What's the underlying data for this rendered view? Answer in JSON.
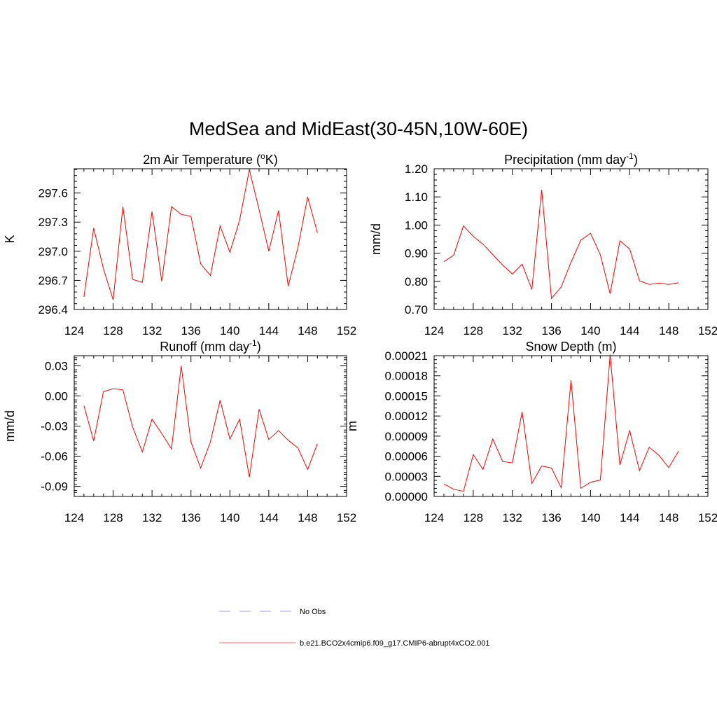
{
  "figure": {
    "title": "MedSea and MidEast(30-45N,10W-60E)"
  },
  "legend": [
    {
      "label": "No Obs",
      "color": "#9c9cff",
      "dash": "dashed"
    },
    {
      "label": "b.e21.BCO2x4cmip6.f09_g17.CMIP6-abrupt4xCO2.001",
      "color": "#ff7070",
      "dash": "solid"
    }
  ],
  "colors": {
    "series": "#ff0000",
    "axis": "#000000"
  },
  "chart_data": [
    {
      "type": "line",
      "title": "2m Air Temperature (oK)",
      "title_parts": {
        "before": "2m Air Temperature (",
        "sup": "o",
        "after": "K)"
      },
      "ylabel": "K",
      "xlim": [
        124,
        152
      ],
      "ylim": [
        296.4,
        297.85
      ],
      "xticks": [
        124,
        128,
        132,
        136,
        140,
        144,
        148,
        152
      ],
      "yticks": [
        296.4,
        296.7,
        297.0,
        297.3,
        297.6
      ],
      "ytick_labels": [
        "296.4",
        "296.7",
        "297.0",
        "297.3",
        "297.6"
      ],
      "x": [
        125,
        126,
        127,
        128,
        129,
        130,
        131,
        132,
        133,
        134,
        135,
        136,
        137,
        138,
        139,
        140,
        141,
        142,
        143,
        144,
        145,
        146,
        147,
        148,
        149
      ],
      "series": [
        {
          "values": [
            296.53,
            297.24,
            296.82,
            296.5,
            297.46,
            296.71,
            296.68,
            297.41,
            296.69,
            297.46,
            297.38,
            297.36,
            296.87,
            296.75,
            297.26,
            296.99,
            297.32,
            297.84,
            297.43,
            297.0,
            297.42,
            296.64,
            297.04,
            297.56,
            297.19
          ]
        }
      ]
    },
    {
      "type": "line",
      "title": "Precipitation (mm day-1)",
      "title_parts": {
        "before": "Precipitation (mm day",
        "sup": "-1",
        "after": ")"
      },
      "ylabel": "mm/d",
      "xlim": [
        124,
        152
      ],
      "ylim": [
        0.7,
        1.2
      ],
      "xticks": [
        124,
        128,
        132,
        136,
        140,
        144,
        148,
        152
      ],
      "yticks": [
        0.7,
        0.8,
        0.9,
        1.0,
        1.1,
        1.2
      ],
      "ytick_labels": [
        "0.70",
        "0.80",
        "0.90",
        "1.00",
        "1.10",
        "1.20"
      ],
      "x": [
        125,
        126,
        127,
        128,
        129,
        130,
        131,
        132,
        133,
        134,
        135,
        136,
        137,
        138,
        139,
        140,
        141,
        142,
        143,
        144,
        145,
        146,
        147,
        148,
        149
      ],
      "series": [
        {
          "values": [
            0.87,
            0.893,
            0.997,
            0.96,
            0.932,
            0.895,
            0.858,
            0.826,
            0.861,
            0.771,
            1.125,
            0.739,
            0.78,
            0.868,
            0.946,
            0.971,
            0.894,
            0.756,
            0.944,
            0.915,
            0.802,
            0.789,
            0.794,
            0.789,
            0.795
          ]
        }
      ]
    },
    {
      "type": "line",
      "title": "Runoff (mm day-1)",
      "title_parts": {
        "before": "Runoff (mm day",
        "sup": "-1",
        "after": ")"
      },
      "ylabel": "mm/d",
      "xlim": [
        124,
        152
      ],
      "ylim": [
        -0.1,
        0.04
      ],
      "xticks": [
        124,
        128,
        132,
        136,
        140,
        144,
        148,
        152
      ],
      "yticks": [
        -0.09,
        -0.06,
        -0.03,
        0.0,
        0.03
      ],
      "ytick_labels": [
        "-0.09",
        "-0.06",
        "-0.03",
        "0.00",
        "0.03"
      ],
      "x": [
        125,
        126,
        127,
        128,
        129,
        130,
        131,
        132,
        133,
        134,
        135,
        136,
        137,
        138,
        139,
        140,
        141,
        142,
        143,
        144,
        145,
        146,
        147,
        148,
        149
      ],
      "series": [
        {
          "values": [
            -0.0098,
            -0.0448,
            0.0042,
            0.0072,
            0.006,
            -0.031,
            -0.0558,
            -0.0232,
            -0.0374,
            -0.0528,
            0.0298,
            -0.0458,
            -0.0718,
            -0.0456,
            -0.0042,
            -0.0428,
            -0.0232,
            -0.0809,
            -0.0132,
            -0.0435,
            -0.0344,
            -0.0441,
            -0.0518,
            -0.0731,
            -0.0476
          ]
        }
      ]
    },
    {
      "type": "line",
      "title": "Snow Depth (m)",
      "title_parts": {
        "before": "Snow Depth (m)",
        "sup": "",
        "after": ""
      },
      "ylabel": "m",
      "xlim": [
        124,
        152
      ],
      "ylim": [
        0,
        0.00021
      ],
      "xticks": [
        124,
        128,
        132,
        136,
        140,
        144,
        148,
        152
      ],
      "yticks": [
        0,
        3e-05,
        6e-05,
        9e-05,
        0.00012,
        0.00015,
        0.00018,
        0.00021
      ],
      "ytick_labels": [
        "0.00000",
        "0.00003",
        "0.00006",
        "0.00009",
        "0.00012",
        "0.00015",
        "0.00018",
        "0.00021"
      ],
      "x": [
        125,
        126,
        127,
        128,
        129,
        130,
        131,
        132,
        133,
        134,
        135,
        136,
        137,
        138,
        139,
        140,
        141,
        142,
        143,
        144,
        145,
        146,
        147,
        148,
        149
      ],
      "series": [
        {
          "values": [
            1.85e-05,
            1.08e-05,
            7.6e-06,
            6.25e-05,
            4.03e-05,
            8.58e-05,
            5.22e-05,
            5e-05,
            0.0001262,
            1.93e-05,
            4.55e-05,
            4.24e-05,
            1.28e-05,
            0.0001733,
            1.22e-05,
            2.12e-05,
            2.44e-05,
            0.0002117,
            4.69e-05,
            9.82e-05,
            3.84e-05,
            7.33e-05,
            6.12e-05,
            4.29e-05,
            6.76e-05
          ]
        }
      ]
    }
  ]
}
